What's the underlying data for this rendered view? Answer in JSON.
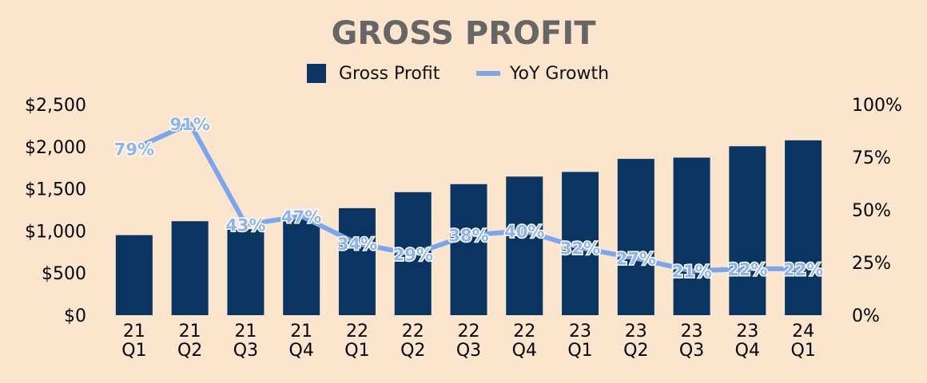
{
  "chart_data": {
    "type": "bar",
    "title": "GROSS PROFIT",
    "legend_position": "top-center",
    "categories": [
      [
        "21",
        "Q1"
      ],
      [
        "21",
        "Q2"
      ],
      [
        "21",
        "Q3"
      ],
      [
        "21",
        "Q4"
      ],
      [
        "22",
        "Q1"
      ],
      [
        "22",
        "Q2"
      ],
      [
        "22",
        "Q3"
      ],
      [
        "22",
        "Q4"
      ],
      [
        "23",
        "Q1"
      ],
      [
        "23",
        "Q2"
      ],
      [
        "23",
        "Q3"
      ],
      [
        "23",
        "Q4"
      ],
      [
        "24",
        "Q1"
      ]
    ],
    "series": [
      {
        "name": "Gross Profit",
        "type": "bar",
        "axis": "left",
        "color": "#0a3563",
        "values": [
          950,
          1115,
          1020,
          1150,
          1270,
          1460,
          1555,
          1645,
          1700,
          1855,
          1870,
          2005,
          2075
        ]
      },
      {
        "name": "YoY Growth",
        "type": "line",
        "axis": "right",
        "color": "#7aa6ef",
        "values": [
          79,
          91,
          43,
          47,
          34,
          29,
          38,
          40,
          32,
          27,
          21,
          22,
          22
        ],
        "labels": [
          "79%",
          "91%",
          "43%",
          "47%",
          "34%",
          "29%",
          "38%",
          "40%",
          "32%",
          "27%",
          "21%",
          "22%",
          "22%"
        ]
      }
    ],
    "y_left": {
      "min": 0,
      "max": 2500,
      "ticks": [
        0,
        500,
        1000,
        1500,
        2000,
        2500
      ],
      "tick_labels": [
        "$0",
        "$500",
        "$1,000",
        "$1,500",
        "$2,000",
        "$2,500"
      ]
    },
    "y_right": {
      "min": 0,
      "max": 100,
      "ticks": [
        0,
        25,
        50,
        75,
        100
      ],
      "tick_labels": [
        "0%",
        "25%",
        "50%",
        "75%",
        "100%"
      ]
    },
    "grid": false
  }
}
